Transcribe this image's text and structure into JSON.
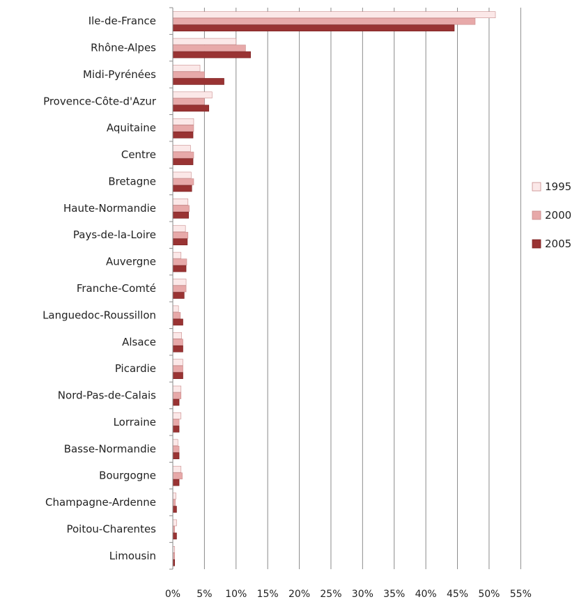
{
  "chart_data": {
    "type": "bar",
    "orientation": "horizontal",
    "title": "",
    "xlabel": "",
    "ylabel": "",
    "xlim": [
      0,
      55
    ],
    "x_ticks": [
      "0%",
      "5%",
      "10%",
      "15%",
      "20%",
      "25%",
      "30%",
      "35%",
      "40%",
      "45%",
      "50%",
      "55%"
    ],
    "grid": true,
    "legend_position": "right",
    "categories": [
      "Ile-de-France",
      "Rhône-Alpes",
      "Midi-Pyrénées",
      "Provence-Côte-d'Azur",
      "Aquitaine",
      "Centre",
      "Bretagne",
      "Haute-Normandie",
      "Pays-de-la-Loire",
      "Auvergne",
      "Franche-Comté",
      "Languedoc-Roussillon",
      "Alsace",
      "Picardie",
      "Nord-Pas-de-Calais",
      "Lorraine",
      "Basse-Normandie",
      "Bourgogne",
      "Champagne-Ardenne",
      "Poitou-Charentes",
      "Limousin"
    ],
    "series": [
      {
        "name": "1995",
        "color": "#fbe8e8",
        "values": [
          51.0,
          10.0,
          4.3,
          6.2,
          3.3,
          2.8,
          2.9,
          2.4,
          2.0,
          1.3,
          2.1,
          0.9,
          1.4,
          1.6,
          1.3,
          1.3,
          0.8,
          1.3,
          0.5,
          0.6,
          0.3
        ]
      },
      {
        "name": "2000",
        "color": "#e7a9a9",
        "values": [
          47.8,
          11.5,
          5.0,
          5.0,
          3.3,
          3.3,
          3.3,
          2.6,
          2.4,
          2.2,
          2.1,
          1.2,
          1.6,
          1.6,
          1.3,
          1.0,
          1.0,
          1.5,
          0.4,
          0.3,
          0.3
        ]
      },
      {
        "name": "2005",
        "color": "#993333",
        "values": [
          44.5,
          12.3,
          8.1,
          5.7,
          3.2,
          3.2,
          3.0,
          2.5,
          2.3,
          2.1,
          1.8,
          1.6,
          1.6,
          1.6,
          1.0,
          1.0,
          1.0,
          1.0,
          0.6,
          0.6,
          0.3
        ]
      }
    ]
  }
}
